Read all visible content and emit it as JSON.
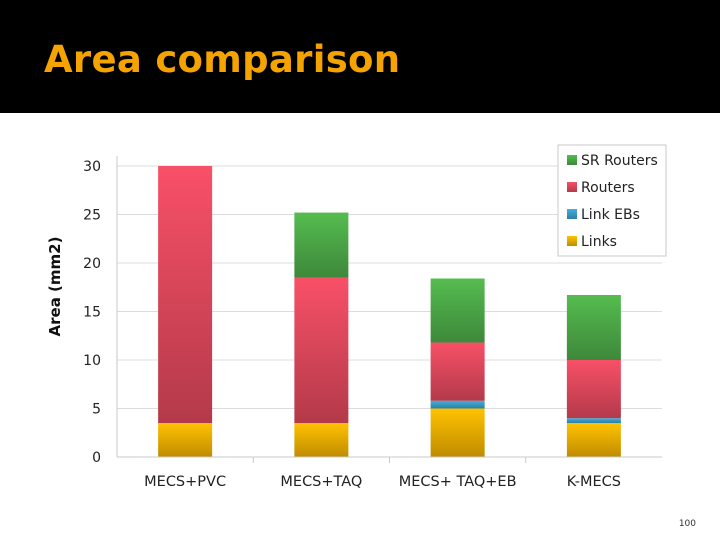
{
  "slide": {
    "title": "Area comparison",
    "page_number": "100"
  },
  "colors": {
    "title": "#f5a300",
    "SR Routers": "#4fae4a",
    "Routers": "#e64a5f",
    "Link EBs": "#3aa3cf",
    "Links": "#f6b400",
    "grid": "#dcdcdc"
  },
  "chart_data": {
    "type": "bar",
    "stacked": true,
    "title": "",
    "xlabel": "",
    "ylabel": "Area (mm2)",
    "ylim": [
      0,
      30
    ],
    "yticks": [
      0,
      5,
      10,
      15,
      20,
      25,
      30
    ],
    "grid": true,
    "legend_position": "top-right",
    "categories": [
      "MECS+PVC",
      "MECS+TAQ",
      "MECS+ TAQ+EB",
      "K-MECS"
    ],
    "series": [
      {
        "name": "Links",
        "values": [
          3.5,
          3.5,
          5.0,
          3.5
        ]
      },
      {
        "name": "Link EBs",
        "values": [
          0.0,
          0.0,
          0.8,
          0.5
        ]
      },
      {
        "name": "Routers",
        "values": [
          26.5,
          15.0,
          6.0,
          6.0
        ]
      },
      {
        "name": "SR Routers",
        "values": [
          0.0,
          6.7,
          6.6,
          6.7
        ]
      }
    ],
    "legend_order": [
      "SR Routers",
      "Routers",
      "Link EBs",
      "Links"
    ]
  }
}
